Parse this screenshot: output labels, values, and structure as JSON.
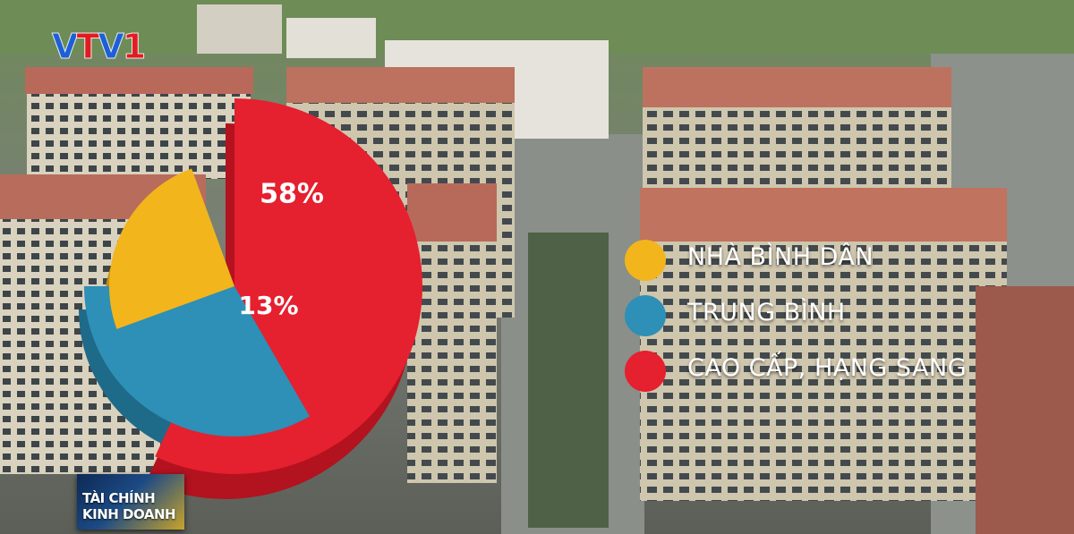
{
  "channel_logo": {
    "text": "VTV1"
  },
  "program_badge": {
    "line1": "TÀI CHÍNH",
    "line2": "KINH DOANH"
  },
  "chart_data": {
    "type": "pie",
    "title": "",
    "slices": [
      {
        "label": "CAO CẤP, HẠNG SANG",
        "value": 58,
        "display": "58%",
        "color": "#e5202f"
      },
      {
        "label": "TRUNG BÌNH",
        "value": 29,
        "display": "",
        "color": "#2e8fb7"
      },
      {
        "label": "NHÀ BÌNH DÂN",
        "value": 13,
        "display": "13%",
        "color": "#f2b51c"
      }
    ],
    "legend": {
      "placement": "right",
      "entries": [
        {
          "label": "NHÀ BÌNH DÂN",
          "color": "#f2b51c"
        },
        {
          "label": "TRUNG BÌNH",
          "color": "#2e8fb7"
        },
        {
          "label": "CAO CẤP, HẠNG SANG",
          "color": "#e5202f"
        }
      ]
    }
  }
}
